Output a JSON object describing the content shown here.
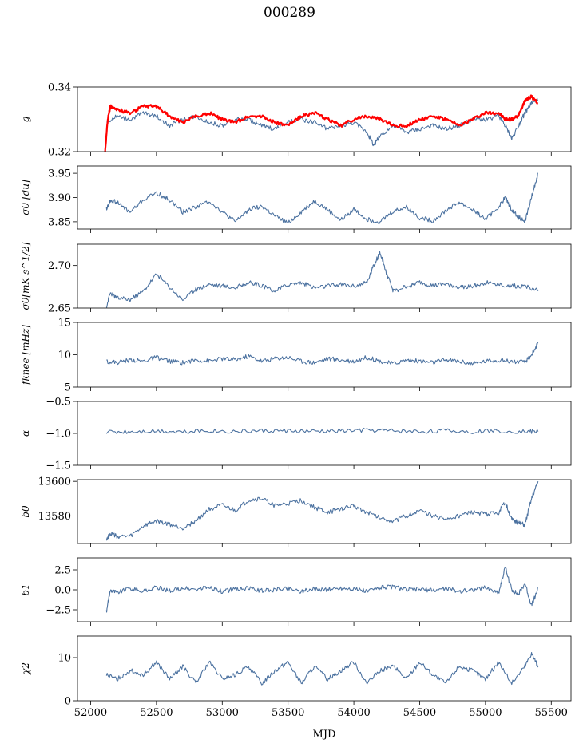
{
  "figure": {
    "title": "000289",
    "xlabel": "MJD"
  },
  "colors": {
    "series": "#4c72a0",
    "fit": "#ff0000"
  },
  "chart_data": [
    {
      "type": "line",
      "id": "g",
      "ylabel": "g",
      "xlim": [
        51900,
        55650
      ],
      "ylim": [
        0.32,
        0.34
      ],
      "yticks": [
        0.32,
        0.34
      ],
      "ytick_labels": [
        "0.32",
        "0.34"
      ],
      "series": [
        {
          "name": "g",
          "color": "#4c72a0",
          "x": [
            52120,
            52200,
            52300,
            52400,
            52500,
            52600,
            52700,
            52800,
            52900,
            53000,
            53100,
            53200,
            53300,
            53400,
            53500,
            53600,
            53700,
            53800,
            53900,
            54000,
            54100,
            54150,
            54200,
            54300,
            54400,
            54500,
            54600,
            54700,
            54800,
            54900,
            55000,
            55100,
            55150,
            55200,
            55250,
            55300,
            55350,
            55400
          ],
          "y": [
            0.329,
            0.331,
            0.33,
            0.332,
            0.331,
            0.328,
            0.33,
            0.331,
            0.329,
            0.328,
            0.33,
            0.33,
            0.328,
            0.327,
            0.329,
            0.33,
            0.329,
            0.327,
            0.328,
            0.329,
            0.326,
            0.322,
            0.325,
            0.328,
            0.326,
            0.327,
            0.328,
            0.327,
            0.328,
            0.33,
            0.33,
            0.331,
            0.328,
            0.324,
            0.328,
            0.332,
            0.335,
            0.336
          ]
        },
        {
          "name": "fit",
          "color": "#ff0000",
          "x": [
            52110,
            52130,
            52150,
            52200,
            52300,
            52400,
            52500,
            52600,
            52700,
            52800,
            52900,
            53000,
            53100,
            53200,
            53300,
            53400,
            53500,
            53600,
            53700,
            53800,
            53900,
            54000,
            54100,
            54200,
            54300,
            54400,
            54500,
            54600,
            54700,
            54800,
            54900,
            55000,
            55100,
            55150,
            55200,
            55250,
            55300,
            55350,
            55400
          ],
          "y": [
            0.32,
            0.33,
            0.334,
            0.333,
            0.332,
            0.334,
            0.334,
            0.331,
            0.329,
            0.331,
            0.332,
            0.33,
            0.329,
            0.331,
            0.331,
            0.329,
            0.328,
            0.331,
            0.332,
            0.33,
            0.328,
            0.33,
            0.331,
            0.33,
            0.328,
            0.328,
            0.33,
            0.331,
            0.33,
            0.328,
            0.33,
            0.332,
            0.332,
            0.33,
            0.33,
            0.331,
            0.336,
            0.337,
            0.335
          ]
        }
      ]
    },
    {
      "type": "line",
      "id": "sigma0_du",
      "ylabel": "σ0 [du]",
      "xlim": [
        51900,
        55650
      ],
      "ylim": [
        3.835,
        3.965
      ],
      "yticks": [
        3.85,
        3.9,
        3.95
      ],
      "ytick_labels": [
        "3.85",
        "3.90",
        "3.95"
      ],
      "series": [
        {
          "name": "sigma0",
          "color": "#4c72a0",
          "x": [
            52120,
            52150,
            52200,
            52300,
            52400,
            52500,
            52600,
            52700,
            52800,
            52900,
            53000,
            53100,
            53200,
            53300,
            53400,
            53500,
            53600,
            53700,
            53800,
            53900,
            54000,
            54100,
            54200,
            54300,
            54400,
            54500,
            54600,
            54700,
            54800,
            54900,
            55000,
            55100,
            55150,
            55200,
            55250,
            55300,
            55350,
            55400
          ],
          "y": [
            3.875,
            3.895,
            3.89,
            3.87,
            3.895,
            3.91,
            3.895,
            3.87,
            3.88,
            3.893,
            3.87,
            3.85,
            3.875,
            3.882,
            3.862,
            3.847,
            3.87,
            3.893,
            3.875,
            3.853,
            3.876,
            3.855,
            3.85,
            3.872,
            3.88,
            3.858,
            3.852,
            3.873,
            3.89,
            3.875,
            3.855,
            3.88,
            3.9,
            3.875,
            3.86,
            3.85,
            3.9,
            3.95
          ]
        }
      ]
    },
    {
      "type": "line",
      "id": "sigma0_mk",
      "ylabel": "σ0[mK s^1/2]",
      "xlim": [
        51900,
        55650
      ],
      "ylim": [
        2.65,
        2.725
      ],
      "yticks": [
        2.65,
        2.7
      ],
      "ytick_labels": [
        "2.65",
        "2.70"
      ],
      "series": [
        {
          "name": "sigma0_mk",
          "color": "#4c72a0",
          "x": [
            52120,
            52150,
            52200,
            52300,
            52400,
            52500,
            52600,
            52700,
            52800,
            52900,
            53000,
            53100,
            53200,
            53300,
            53400,
            53500,
            53600,
            53700,
            53800,
            53900,
            54000,
            54100,
            54150,
            54200,
            54250,
            54300,
            54400,
            54500,
            54600,
            54700,
            54800,
            54900,
            55000,
            55100,
            55200,
            55300,
            55400
          ],
          "y": [
            2.652,
            2.668,
            2.662,
            2.66,
            2.67,
            2.69,
            2.675,
            2.66,
            2.672,
            2.678,
            2.676,
            2.674,
            2.68,
            2.676,
            2.67,
            2.678,
            2.68,
            2.674,
            2.676,
            2.678,
            2.676,
            2.68,
            2.7,
            2.715,
            2.69,
            2.67,
            2.675,
            2.68,
            2.676,
            2.678,
            2.674,
            2.676,
            2.68,
            2.678,
            2.676,
            2.676,
            2.67
          ]
        }
      ]
    },
    {
      "type": "line",
      "id": "fknee",
      "ylabel": "fknee [mHz]",
      "xlim": [
        51900,
        55650
      ],
      "ylim": [
        5,
        15
      ],
      "yticks": [
        5,
        10,
        15
      ],
      "ytick_labels": [
        "5",
        "10",
        "15"
      ],
      "series": [
        {
          "name": "fknee",
          "color": "#4c72a0",
          "x": [
            52120,
            52200,
            52300,
            52400,
            52500,
            52600,
            52700,
            52800,
            52900,
            53000,
            53100,
            53200,
            53300,
            53400,
            53500,
            53600,
            53700,
            53800,
            53900,
            54000,
            54100,
            54200,
            54300,
            54400,
            54500,
            54600,
            54700,
            54800,
            54900,
            55000,
            55100,
            55200,
            55300,
            55350,
            55400
          ],
          "y": [
            9.0,
            8.8,
            9.2,
            9.0,
            9.6,
            9.0,
            8.8,
            9.2,
            9.0,
            9.4,
            9.2,
            9.8,
            9.0,
            9.4,
            9.6,
            9.0,
            8.8,
            9.4,
            9.2,
            9.0,
            9.6,
            9.0,
            8.6,
            9.2,
            9.0,
            8.8,
            9.2,
            9.0,
            8.6,
            9.0,
            9.2,
            9.0,
            8.8,
            10.0,
            11.8
          ]
        }
      ]
    },
    {
      "type": "line",
      "id": "alpha",
      "ylabel": "α",
      "xlim": [
        51900,
        55650
      ],
      "ylim": [
        -1.5,
        -0.5
      ],
      "yticks": [
        -1.5,
        -1.0,
        -0.5
      ],
      "ytick_labels": [
        "−1.5",
        "−1.0",
        "−0.5"
      ],
      "series": [
        {
          "name": "alpha",
          "color": "#4c72a0",
          "x": [
            52120,
            52300,
            52500,
            52700,
            52900,
            53100,
            53300,
            53500,
            53700,
            53900,
            54100,
            54300,
            54500,
            54700,
            54900,
            55100,
            55300,
            55400
          ],
          "y": [
            -0.98,
            -0.97,
            -0.96,
            -0.97,
            -0.96,
            -0.97,
            -0.96,
            -0.96,
            -0.97,
            -0.96,
            -0.95,
            -0.96,
            -0.97,
            -0.96,
            -0.97,
            -0.96,
            -0.97,
            -0.97
          ]
        }
      ]
    },
    {
      "type": "line",
      "id": "b0",
      "ylabel": "b0",
      "xlim": [
        51900,
        55650
      ],
      "ylim": [
        13564,
        13601
      ],
      "yticks": [
        13580,
        13600
      ],
      "ytick_labels": [
        "13580",
        "13600"
      ],
      "series": [
        {
          "name": "b0",
          "color": "#4c72a0",
          "x": [
            52120,
            52150,
            52200,
            52300,
            52400,
            52500,
            52600,
            52700,
            52800,
            52900,
            53000,
            53100,
            53200,
            53300,
            53400,
            53500,
            53600,
            53700,
            53800,
            53900,
            54000,
            54100,
            54200,
            54300,
            54400,
            54500,
            54600,
            54700,
            54800,
            54900,
            55000,
            55100,
            55150,
            55200,
            55250,
            55300,
            55350,
            55400
          ],
          "y": [
            13566,
            13570,
            13568,
            13568,
            13574,
            13577,
            13575,
            13573,
            13577,
            13584,
            13586,
            13583,
            13589,
            13590,
            13586,
            13587,
            13589,
            13585,
            13582,
            13584,
            13586,
            13582,
            13579,
            13577,
            13580,
            13583,
            13580,
            13578,
            13580,
            13582,
            13581,
            13582,
            13588,
            13578,
            13576,
            13575,
            13590,
            13600
          ]
        }
      ]
    },
    {
      "type": "line",
      "id": "b1",
      "ylabel": "b1",
      "xlim": [
        51900,
        55650
      ],
      "ylim": [
        -4,
        4
      ],
      "yticks": [
        -2.5,
        0.0,
        2.5
      ],
      "ytick_labels": [
        "−2.5",
        "0.0",
        "2.5"
      ],
      "series": [
        {
          "name": "b1",
          "color": "#4c72a0",
          "x": [
            52120,
            52150,
            52200,
            52300,
            52400,
            52500,
            52600,
            52700,
            52800,
            52900,
            53000,
            53100,
            53200,
            53300,
            53400,
            53500,
            53600,
            53700,
            53800,
            53900,
            54000,
            54100,
            54200,
            54300,
            54400,
            54500,
            54600,
            54700,
            54800,
            54900,
            55000,
            55100,
            55150,
            55200,
            55250,
            55300,
            55350,
            55400
          ],
          "y": [
            -2.8,
            0.0,
            -0.3,
            0.2,
            -0.2,
            0.3,
            -0.1,
            0.2,
            0.0,
            0.3,
            -0.2,
            0.1,
            0.2,
            -0.1,
            0.0,
            0.2,
            -0.2,
            0.1,
            0.0,
            0.2,
            0.1,
            -0.2,
            0.3,
            0.4,
            0.0,
            0.1,
            -0.1,
            0.2,
            -0.2,
            0.0,
            0.3,
            -0.4,
            2.8,
            0.0,
            -0.6,
            0.8,
            -2.0,
            0.2
          ]
        }
      ]
    },
    {
      "type": "line",
      "id": "chi2",
      "ylabel": "χ2",
      "xlabel": "MJD",
      "xlim": [
        51900,
        55650
      ],
      "ylim": [
        0,
        15
      ],
      "yticks": [
        0,
        10
      ],
      "ytick_labels": [
        "0",
        "10"
      ],
      "xticks": [
        52000,
        52500,
        53000,
        53500,
        54000,
        54500,
        55000,
        55500
      ],
      "xtick_labels": [
        "52000",
        "52500",
        "53000",
        "53500",
        "54000",
        "54500",
        "55000",
        "55500"
      ],
      "series": [
        {
          "name": "chi2",
          "color": "#4c72a0",
          "x": [
            52120,
            52200,
            52300,
            52400,
            52500,
            52600,
            52700,
            52800,
            52900,
            53000,
            53100,
            53200,
            53300,
            53400,
            53500,
            53600,
            53700,
            53800,
            53900,
            54000,
            54100,
            54200,
            54300,
            54400,
            54500,
            54600,
            54700,
            54800,
            54900,
            55000,
            55100,
            55200,
            55300,
            55350,
            55400
          ],
          "y": [
            6,
            5,
            7,
            6,
            9,
            5,
            8,
            4,
            9,
            5,
            6,
            8,
            4,
            7,
            9,
            4,
            8,
            5,
            7,
            9,
            4,
            7,
            8,
            5,
            9,
            6,
            4,
            8,
            7,
            5,
            9,
            4,
            8,
            11,
            8
          ]
        }
      ]
    }
  ]
}
